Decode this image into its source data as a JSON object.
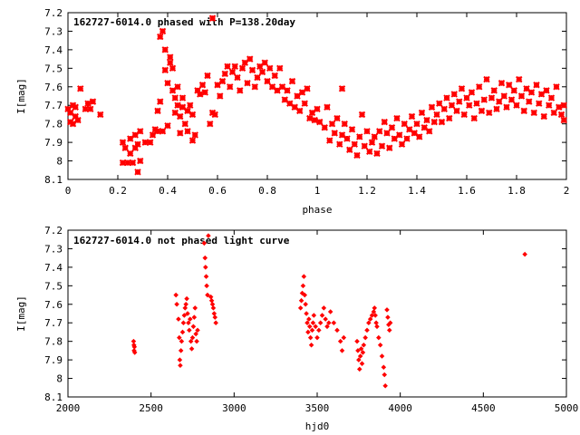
{
  "chart_data": [
    {
      "type": "scatter",
      "title": "162727-6014.0 phased with P=138.20day",
      "xlabel": "phase",
      "ylabel": "I[mag]",
      "xlim": [
        0,
        2
      ],
      "ylim": [
        8.1,
        7.2
      ],
      "y_inverted": true,
      "marker": "cross",
      "color": "#ff0000",
      "x_ticks": [
        "0",
        "0.2",
        "0.4",
        "0.6",
        "0.8",
        "1",
        "1.2",
        "1.4",
        "1.6",
        "1.8",
        "2"
      ],
      "y_ticks": [
        "7.2",
        "7.3",
        "7.4",
        "7.5",
        "7.6",
        "7.7",
        "7.8",
        "7.9",
        "8",
        "8.1"
      ],
      "points": [
        [
          0.0,
          7.72
        ],
        [
          0.01,
          7.79
        ],
        [
          0.01,
          7.74
        ],
        [
          0.02,
          7.7
        ],
        [
          0.02,
          7.8
        ],
        [
          0.03,
          7.76
        ],
        [
          0.03,
          7.71
        ],
        [
          0.04,
          7.78
        ],
        [
          0.05,
          7.61
        ],
        [
          0.07,
          7.72
        ],
        [
          0.08,
          7.69
        ],
        [
          0.09,
          7.72
        ],
        [
          0.1,
          7.68
        ],
        [
          0.13,
          7.75
        ],
        [
          0.22,
          7.9
        ],
        [
          0.22,
          8.01
        ],
        [
          0.23,
          7.93
        ],
        [
          0.24,
          8.01
        ],
        [
          0.25,
          7.88
        ],
        [
          0.25,
          7.96
        ],
        [
          0.26,
          8.01
        ],
        [
          0.27,
          7.93
        ],
        [
          0.27,
          7.86
        ],
        [
          0.28,
          8.06
        ],
        [
          0.28,
          7.91
        ],
        [
          0.29,
          7.84
        ],
        [
          0.29,
          8.0
        ],
        [
          0.31,
          7.9
        ],
        [
          0.33,
          7.9
        ],
        [
          0.34,
          7.86
        ],
        [
          0.35,
          7.83
        ],
        [
          0.36,
          7.84
        ],
        [
          0.36,
          7.73
        ],
        [
          0.37,
          7.68
        ],
        [
          0.37,
          7.33
        ],
        [
          0.38,
          7.3
        ],
        [
          0.38,
          7.84
        ],
        [
          0.39,
          7.4
        ],
        [
          0.39,
          7.51
        ],
        [
          0.4,
          7.58
        ],
        [
          0.4,
          7.81
        ],
        [
          0.41,
          7.44
        ],
        [
          0.41,
          7.47
        ],
        [
          0.42,
          7.5
        ],
        [
          0.42,
          7.62
        ],
        [
          0.43,
          7.74
        ],
        [
          0.43,
          7.66
        ],
        [
          0.44,
          7.6
        ],
        [
          0.44,
          7.7
        ],
        [
          0.45,
          7.76
        ],
        [
          0.45,
          7.85
        ],
        [
          0.46,
          7.71
        ],
        [
          0.46,
          7.66
        ],
        [
          0.47,
          7.8
        ],
        [
          0.48,
          7.73
        ],
        [
          0.48,
          7.84
        ],
        [
          0.49,
          7.7
        ],
        [
          0.5,
          7.89
        ],
        [
          0.5,
          7.75
        ],
        [
          0.51,
          7.86
        ],
        [
          0.52,
          7.62
        ],
        [
          0.53,
          7.64
        ],
        [
          0.54,
          7.59
        ],
        [
          0.55,
          7.63
        ],
        [
          0.56,
          7.54
        ],
        [
          0.57,
          7.8
        ],
        [
          0.58,
          7.74
        ],
        [
          0.58,
          7.23
        ],
        [
          0.59,
          7.75
        ],
        [
          0.6,
          7.59
        ],
        [
          0.61,
          7.65
        ],
        [
          0.62,
          7.57
        ],
        [
          0.63,
          7.53
        ],
        [
          0.64,
          7.49
        ],
        [
          0.65,
          7.6
        ],
        [
          0.66,
          7.52
        ],
        [
          0.67,
          7.49
        ],
        [
          0.68,
          7.55
        ],
        [
          0.69,
          7.62
        ],
        [
          0.7,
          7.5
        ],
        [
          0.71,
          7.47
        ],
        [
          0.72,
          7.58
        ],
        [
          0.73,
          7.45
        ],
        [
          0.74,
          7.51
        ],
        [
          0.75,
          7.6
        ],
        [
          0.76,
          7.55
        ],
        [
          0.77,
          7.49
        ],
        [
          0.78,
          7.52
        ],
        [
          0.79,
          7.47
        ],
        [
          0.8,
          7.57
        ],
        [
          0.81,
          7.5
        ],
        [
          0.82,
          7.6
        ],
        [
          0.83,
          7.54
        ],
        [
          0.84,
          7.62
        ],
        [
          0.85,
          7.5
        ],
        [
          0.86,
          7.6
        ],
        [
          0.87,
          7.67
        ],
        [
          0.88,
          7.62
        ],
        [
          0.89,
          7.69
        ],
        [
          0.9,
          7.57
        ],
        [
          0.91,
          7.71
        ],
        [
          0.92,
          7.65
        ],
        [
          0.93,
          7.73
        ],
        [
          0.94,
          7.63
        ],
        [
          0.95,
          7.69
        ],
        [
          0.96,
          7.61
        ],
        [
          0.97,
          7.77
        ],
        [
          0.98,
          7.74
        ],
        [
          0.99,
          7.78
        ],
        [
          1.0,
          7.72
        ],
        [
          1.01,
          7.79
        ],
        [
          1.03,
          7.82
        ],
        [
          1.04,
          7.71
        ],
        [
          1.05,
          7.89
        ],
        [
          1.06,
          7.8
        ],
        [
          1.07,
          7.85
        ],
        [
          1.08,
          7.77
        ],
        [
          1.09,
          7.91
        ],
        [
          1.1,
          7.86
        ],
        [
          1.1,
          7.61
        ],
        [
          1.11,
          7.8
        ],
        [
          1.12,
          7.88
        ],
        [
          1.13,
          7.94
        ],
        [
          1.14,
          7.83
        ],
        [
          1.15,
          7.91
        ],
        [
          1.16,
          7.97
        ],
        [
          1.17,
          7.87
        ],
        [
          1.18,
          7.75
        ],
        [
          1.19,
          7.92
        ],
        [
          1.2,
          7.84
        ],
        [
          1.21,
          7.95
        ],
        [
          1.22,
          7.9
        ],
        [
          1.23,
          7.87
        ],
        [
          1.24,
          7.96
        ],
        [
          1.25,
          7.84
        ],
        [
          1.26,
          7.92
        ],
        [
          1.27,
          7.79
        ],
        [
          1.28,
          7.85
        ],
        [
          1.29,
          7.93
        ],
        [
          1.3,
          7.82
        ],
        [
          1.31,
          7.88
        ],
        [
          1.32,
          7.77
        ],
        [
          1.33,
          7.86
        ],
        [
          1.34,
          7.91
        ],
        [
          1.35,
          7.8
        ],
        [
          1.36,
          7.88
        ],
        [
          1.37,
          7.83
        ],
        [
          1.38,
          7.76
        ],
        [
          1.39,
          7.85
        ],
        [
          1.4,
          7.8
        ],
        [
          1.41,
          7.87
        ],
        [
          1.42,
          7.74
        ],
        [
          1.43,
          7.82
        ],
        [
          1.44,
          7.78
        ],
        [
          1.45,
          7.84
        ],
        [
          1.46,
          7.71
        ],
        [
          1.47,
          7.79
        ],
        [
          1.48,
          7.75
        ],
        [
          1.49,
          7.69
        ],
        [
          1.5,
          7.79
        ],
        [
          1.51,
          7.72
        ],
        [
          1.52,
          7.66
        ],
        [
          1.53,
          7.77
        ],
        [
          1.54,
          7.7
        ],
        [
          1.55,
          7.64
        ],
        [
          1.56,
          7.73
        ],
        [
          1.57,
          7.68
        ],
        [
          1.58,
          7.61
        ],
        [
          1.59,
          7.75
        ],
        [
          1.6,
          7.66
        ],
        [
          1.61,
          7.7
        ],
        [
          1.62,
          7.63
        ],
        [
          1.63,
          7.77
        ],
        [
          1.64,
          7.69
        ],
        [
          1.65,
          7.6
        ],
        [
          1.66,
          7.73
        ],
        [
          1.67,
          7.67
        ],
        [
          1.68,
          7.56
        ],
        [
          1.69,
          7.74
        ],
        [
          1.7,
          7.66
        ],
        [
          1.71,
          7.62
        ],
        [
          1.72,
          7.72
        ],
        [
          1.73,
          7.68
        ],
        [
          1.74,
          7.58
        ],
        [
          1.75,
          7.65
        ],
        [
          1.76,
          7.71
        ],
        [
          1.77,
          7.59
        ],
        [
          1.78,
          7.67
        ],
        [
          1.79,
          7.62
        ],
        [
          1.8,
          7.7
        ],
        [
          1.81,
          7.56
        ],
        [
          1.82,
          7.65
        ],
        [
          1.83,
          7.73
        ],
        [
          1.84,
          7.61
        ],
        [
          1.85,
          7.68
        ],
        [
          1.86,
          7.63
        ],
        [
          1.87,
          7.74
        ],
        [
          1.88,
          7.59
        ],
        [
          1.89,
          7.69
        ],
        [
          1.9,
          7.64
        ],
        [
          1.91,
          7.76
        ],
        [
          1.92,
          7.62
        ],
        [
          1.93,
          7.7
        ],
        [
          1.94,
          7.66
        ],
        [
          1.95,
          7.74
        ],
        [
          1.96,
          7.6
        ],
        [
          1.97,
          7.71
        ],
        [
          1.98,
          7.75
        ],
        [
          1.99,
          7.7
        ],
        [
          1.99,
          7.78
        ]
      ]
    },
    {
      "type": "scatter",
      "title": "162727-6014.0 not phased light curve",
      "xlabel": "hjd0",
      "ylabel": "I[mag]",
      "xlim": [
        2000,
        5000
      ],
      "ylim": [
        8.1,
        7.2
      ],
      "y_inverted": true,
      "marker": "diamond",
      "color": "#ff0000",
      "x_ticks": [
        "2000",
        "2500",
        "3000",
        "3500",
        "4000",
        "4500",
        "5000"
      ],
      "y_ticks": [
        "7.2",
        "7.3",
        "7.4",
        "7.5",
        "7.6",
        "7.7",
        "7.8",
        "7.9",
        "8",
        "8.1"
      ],
      "points": [
        [
          2395,
          7.8
        ],
        [
          2397,
          7.82
        ],
        [
          2398,
          7.85
        ],
        [
          2400,
          7.83
        ],
        [
          2402,
          7.86
        ],
        [
          2650,
          7.55
        ],
        [
          2655,
          7.6
        ],
        [
          2665,
          7.68
        ],
        [
          2670,
          7.78
        ],
        [
          2673,
          7.9
        ],
        [
          2676,
          7.93
        ],
        [
          2680,
          7.85
        ],
        [
          2684,
          7.8
        ],
        [
          2690,
          7.75
        ],
        [
          2695,
          7.7
        ],
        [
          2700,
          7.66
        ],
        [
          2705,
          7.62
        ],
        [
          2710,
          7.6
        ],
        [
          2715,
          7.57
        ],
        [
          2720,
          7.65
        ],
        [
          2725,
          7.7
        ],
        [
          2730,
          7.74
        ],
        [
          2735,
          7.68
        ],
        [
          2740,
          7.8
        ],
        [
          2745,
          7.84
        ],
        [
          2750,
          7.78
        ],
        [
          2755,
          7.72
        ],
        [
          2760,
          7.67
        ],
        [
          2765,
          7.62
        ],
        [
          2770,
          7.76
        ],
        [
          2775,
          7.8
        ],
        [
          2780,
          7.74
        ],
        [
          2820,
          7.27
        ],
        [
          2825,
          7.35
        ],
        [
          2828,
          7.4
        ],
        [
          2832,
          7.45
        ],
        [
          2835,
          7.5
        ],
        [
          2840,
          7.55
        ],
        [
          2845,
          7.23
        ],
        [
          2860,
          7.56
        ],
        [
          2865,
          7.58
        ],
        [
          2870,
          7.6
        ],
        [
          2875,
          7.62
        ],
        [
          2880,
          7.65
        ],
        [
          2885,
          7.67
        ],
        [
          2890,
          7.7
        ],
        [
          3400,
          7.62
        ],
        [
          3405,
          7.58
        ],
        [
          3410,
          7.54
        ],
        [
          3415,
          7.5
        ],
        [
          3420,
          7.45
        ],
        [
          3425,
          7.55
        ],
        [
          3430,
          7.6
        ],
        [
          3435,
          7.65
        ],
        [
          3440,
          7.7
        ],
        [
          3445,
          7.75
        ],
        [
          3450,
          7.68
        ],
        [
          3455,
          7.72
        ],
        [
          3460,
          7.78
        ],
        [
          3465,
          7.82
        ],
        [
          3470,
          7.74
        ],
        [
          3475,
          7.7
        ],
        [
          3480,
          7.66
        ],
        [
          3490,
          7.72
        ],
        [
          3500,
          7.78
        ],
        [
          3510,
          7.74
        ],
        [
          3520,
          7.7
        ],
        [
          3530,
          7.66
        ],
        [
          3540,
          7.62
        ],
        [
          3550,
          7.68
        ],
        [
          3560,
          7.72
        ],
        [
          3570,
          7.7
        ],
        [
          3580,
          7.64
        ],
        [
          3600,
          7.7
        ],
        [
          3620,
          7.74
        ],
        [
          3640,
          7.8
        ],
        [
          3650,
          7.85
        ],
        [
          3660,
          7.78
        ],
        [
          3740,
          7.8
        ],
        [
          3745,
          7.85
        ],
        [
          3750,
          7.9
        ],
        [
          3755,
          7.95
        ],
        [
          3760,
          7.88
        ],
        [
          3765,
          7.84
        ],
        [
          3770,
          7.92
        ],
        [
          3775,
          7.86
        ],
        [
          3780,
          7.82
        ],
        [
          3790,
          7.78
        ],
        [
          3800,
          7.74
        ],
        [
          3810,
          7.7
        ],
        [
          3820,
          7.68
        ],
        [
          3830,
          7.66
        ],
        [
          3840,
          7.64
        ],
        [
          3845,
          7.62
        ],
        [
          3850,
          7.66
        ],
        [
          3855,
          7.7
        ],
        [
          3860,
          7.72
        ],
        [
          3870,
          7.78
        ],
        [
          3880,
          7.82
        ],
        [
          3890,
          7.88
        ],
        [
          3900,
          7.94
        ],
        [
          3905,
          7.98
        ],
        [
          3910,
          8.04
        ],
        [
          3920,
          7.63
        ],
        [
          3925,
          7.67
        ],
        [
          3930,
          7.71
        ],
        [
          3935,
          7.74
        ],
        [
          3940,
          7.7
        ],
        [
          4750,
          7.33
        ]
      ]
    }
  ]
}
